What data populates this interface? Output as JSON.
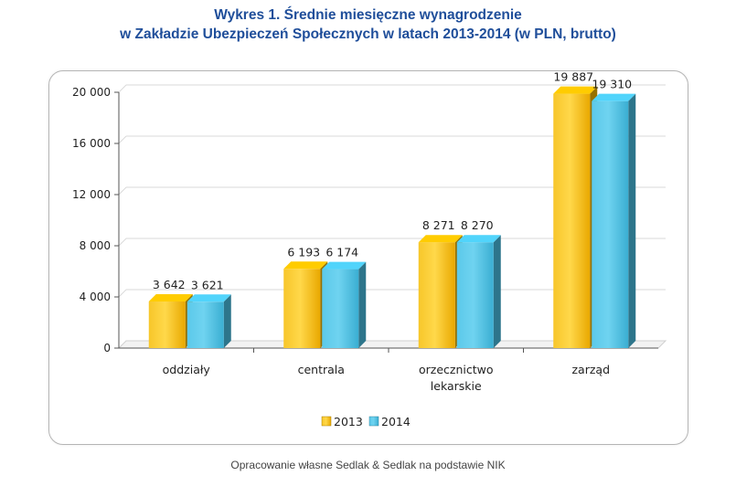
{
  "header": {
    "title_line1": "Wykres 1. Średnie miesięczne wynagrodzenie",
    "title_line2": "w Zakładzie Ubezpieczeń Społecznych w latach 2013-2014 (w PLN, brutto)"
  },
  "source_note": "Opracowanie własne Sedlak & Sedlak na podstawie NIK",
  "chart_data": {
    "type": "bar",
    "title": "Wykres 1. Średnie miesięczne wynagrodzenie w Zakładzie Ubezpieczeń Społecznych w latach 2013-2014 (w PLN, brutto)",
    "categories": [
      [
        "oddziały"
      ],
      [
        "centrala"
      ],
      [
        "orzecznictwo",
        "lekarskie"
      ],
      [
        "zarząd"
      ]
    ],
    "series": [
      {
        "name": "2013",
        "color": "#f2b600",
        "values": [
          3642,
          6193,
          8271,
          19887
        ],
        "labels": [
          "3 642",
          "6 193",
          "8 271",
          "19 887"
        ]
      },
      {
        "name": "2014",
        "color": "#48bde0",
        "values": [
          3621,
          6174,
          8270,
          19310
        ],
        "labels": [
          "3 621",
          "6 174",
          "8 270",
          "19 310"
        ]
      }
    ],
    "yticks": [
      0,
      4000,
      8000,
      12000,
      16000,
      20000
    ],
    "ytick_labels": [
      "0",
      "4 000",
      "8 000",
      "12 000",
      "16 000",
      "20 000"
    ],
    "ylim": [
      0,
      20000
    ],
    "xlabel": "",
    "ylabel": "",
    "legend_position": "bottom",
    "grid": true
  }
}
